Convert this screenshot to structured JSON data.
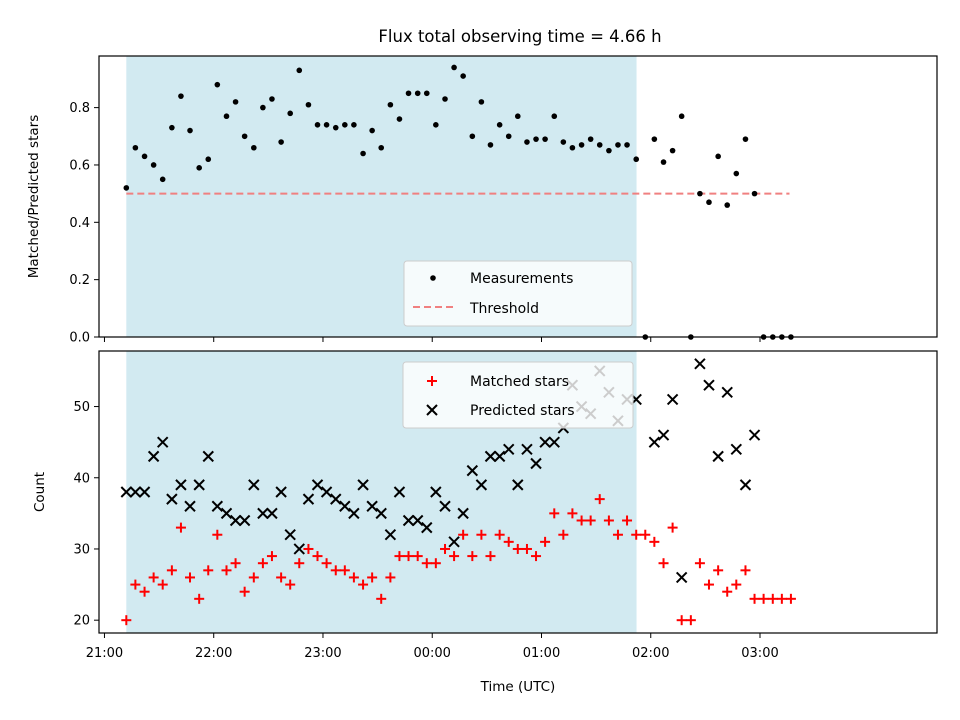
{
  "chart_data": [
    {
      "type": "scatter",
      "title": "Flux total observing time = 4.66 h",
      "xlabel": "",
      "ylabel": "Matched/Predicted stars",
      "ylim": [
        0,
        0.98
      ],
      "yticks": [
        0.0,
        0.2,
        0.4,
        0.6,
        0.8
      ],
      "ytick_labels": [
        "0.0",
        "0.2",
        "0.4",
        "0.6",
        "0.8"
      ],
      "shaded_interval": {
        "start": 21.2,
        "end": 25.87,
        "color": "#add8e6"
      },
      "threshold": {
        "name": "Threshold",
        "value": 0.5,
        "from": 21.2,
        "to": 27.27,
        "color": "#f08080"
      },
      "legend": {
        "position": "lower-center",
        "entries": [
          "Measurements",
          "Threshold"
        ]
      },
      "series": [
        {
          "name": "Measurements",
          "color": "#000000",
          "marker": "dot",
          "x": [
            21.2,
            21.283,
            21.367,
            21.45,
            21.533,
            21.617,
            21.7,
            21.783,
            21.867,
            21.95,
            22.033,
            22.117,
            22.2,
            22.283,
            22.367,
            22.45,
            22.533,
            22.617,
            22.7,
            22.783,
            22.867,
            22.95,
            23.033,
            23.117,
            23.2,
            23.283,
            23.367,
            23.45,
            23.533,
            23.617,
            23.7,
            23.783,
            23.867,
            23.95,
            24.033,
            24.117,
            24.2,
            24.283,
            24.367,
            24.45,
            24.533,
            24.617,
            24.7,
            24.783,
            24.867,
            24.95,
            25.033,
            25.117,
            25.2,
            25.283,
            25.367,
            25.45,
            25.533,
            25.617,
            25.7,
            25.783,
            25.867,
            25.95,
            26.033,
            26.117,
            26.2,
            26.283,
            26.367,
            26.45,
            26.533,
            26.617,
            26.7,
            26.783,
            26.867,
            26.95,
            27.033,
            27.117,
            27.2,
            27.283
          ],
          "y": [
            0.52,
            0.66,
            0.63,
            0.6,
            0.55,
            0.73,
            0.84,
            0.72,
            0.59,
            0.62,
            0.88,
            0.77,
            0.82,
            0.7,
            0.66,
            0.8,
            0.83,
            0.68,
            0.78,
            0.93,
            0.81,
            0.74,
            0.74,
            0.73,
            0.74,
            0.74,
            0.64,
            0.72,
            0.66,
            0.81,
            0.76,
            0.85,
            0.85,
            0.85,
            0.74,
            0.83,
            0.94,
            0.91,
            0.7,
            0.82,
            0.67,
            0.74,
            0.7,
            0.77,
            0.68,
            0.69,
            0.69,
            0.77,
            0.68,
            0.66,
            0.67,
            0.69,
            0.67,
            0.65,
            0.67,
            0.67,
            0.62,
            0.0,
            0.69,
            0.61,
            0.65,
            0.77,
            0.0,
            0.5,
            0.47,
            0.63,
            0.46,
            0.57,
            0.69,
            0.5,
            0.0,
            0.0,
            0.0,
            0.0
          ]
        }
      ]
    },
    {
      "type": "scatter",
      "title": "",
      "xlabel": "Time (UTC)",
      "ylabel": "Count",
      "ylim": [
        18.2,
        57.8
      ],
      "yticks": [
        20,
        30,
        40,
        50
      ],
      "ytick_labels": [
        "20",
        "30",
        "40",
        "50"
      ],
      "xlim": [
        20.95,
        28.62
      ],
      "xticks": [
        21,
        22,
        23,
        24,
        25,
        26,
        27
      ],
      "xtick_labels": [
        "21:00",
        "22:00",
        "23:00",
        "00:00",
        "01:00",
        "02:00",
        "03:00"
      ],
      "shaded_interval": {
        "start": 21.2,
        "end": 25.87,
        "color": "#add8e6"
      },
      "legend": {
        "position": "top-center",
        "entries": [
          "Matched stars",
          "Predicted stars"
        ]
      },
      "series": [
        {
          "name": "Matched stars",
          "color": "#ff0000",
          "marker": "plus",
          "x": [
            21.2,
            21.283,
            21.367,
            21.45,
            21.533,
            21.617,
            21.7,
            21.783,
            21.867,
            21.95,
            22.033,
            22.117,
            22.2,
            22.283,
            22.367,
            22.45,
            22.533,
            22.617,
            22.7,
            22.783,
            22.867,
            22.95,
            23.033,
            23.117,
            23.2,
            23.283,
            23.367,
            23.45,
            23.533,
            23.617,
            23.7,
            23.783,
            23.867,
            23.95,
            24.033,
            24.117,
            24.2,
            24.283,
            24.367,
            24.45,
            24.533,
            24.617,
            24.7,
            24.783,
            24.867,
            24.95,
            25.033,
            25.117,
            25.2,
            25.283,
            25.367,
            25.45,
            25.533,
            25.617,
            25.7,
            25.783,
            25.867,
            25.95,
            26.033,
            26.117,
            26.2,
            26.283,
            26.367,
            26.45,
            26.533,
            26.617,
            26.7,
            26.783,
            26.867,
            26.95,
            27.033,
            27.117,
            27.2,
            27.283
          ],
          "y": [
            20,
            25,
            24,
            26,
            25,
            27,
            33,
            26,
            23,
            27,
            32,
            27,
            28,
            24,
            26,
            28,
            29,
            26,
            25,
            28,
            30,
            29,
            28,
            27,
            27,
            26,
            25,
            26,
            23,
            26,
            29,
            29,
            29,
            28,
            28,
            30,
            29,
            32,
            29,
            32,
            29,
            32,
            31,
            30,
            30,
            29,
            31,
            35,
            32,
            35,
            34,
            34,
            37,
            34,
            32,
            34,
            32,
            32,
            31,
            28,
            33,
            20,
            20,
            28,
            25,
            27,
            24,
            25,
            27,
            23,
            23,
            23,
            23,
            23
          ]
        },
        {
          "name": "Predicted stars",
          "color": "#000000",
          "marker": "x",
          "x": [
            21.2,
            21.283,
            21.367,
            21.45,
            21.533,
            21.617,
            21.7,
            21.783,
            21.867,
            21.95,
            22.033,
            22.117,
            22.2,
            22.283,
            22.367,
            22.45,
            22.533,
            22.617,
            22.7,
            22.783,
            22.867,
            22.95,
            23.033,
            23.117,
            23.2,
            23.283,
            23.367,
            23.45,
            23.533,
            23.617,
            23.7,
            23.783,
            23.867,
            23.95,
            24.033,
            24.117,
            24.2,
            24.283,
            24.367,
            24.45,
            24.533,
            24.617,
            24.7,
            24.783,
            24.867,
            24.95,
            25.033,
            25.117,
            25.2,
            25.283,
            25.367,
            25.45,
            25.533,
            25.617,
            25.7,
            25.783,
            25.867,
            26.033,
            26.117,
            26.2,
            26.283,
            26.45,
            26.533,
            26.617,
            26.7,
            26.783,
            26.867,
            26.95
          ],
          "y": [
            38,
            38,
            38,
            43,
            45,
            37,
            39,
            36,
            39,
            43,
            36,
            35,
            34,
            34,
            39,
            35,
            35,
            38,
            32,
            30,
            37,
            39,
            38,
            37,
            36,
            35,
            39,
            36,
            35,
            32,
            38,
            34,
            34,
            33,
            38,
            36,
            31,
            35,
            41,
            39,
            43,
            43,
            44,
            39,
            44,
            42,
            45,
            45,
            47,
            53,
            50,
            49,
            55,
            52,
            48,
            51,
            51,
            45,
            46,
            51,
            26,
            56,
            53,
            43,
            52,
            44,
            39,
            46
          ]
        }
      ]
    }
  ]
}
